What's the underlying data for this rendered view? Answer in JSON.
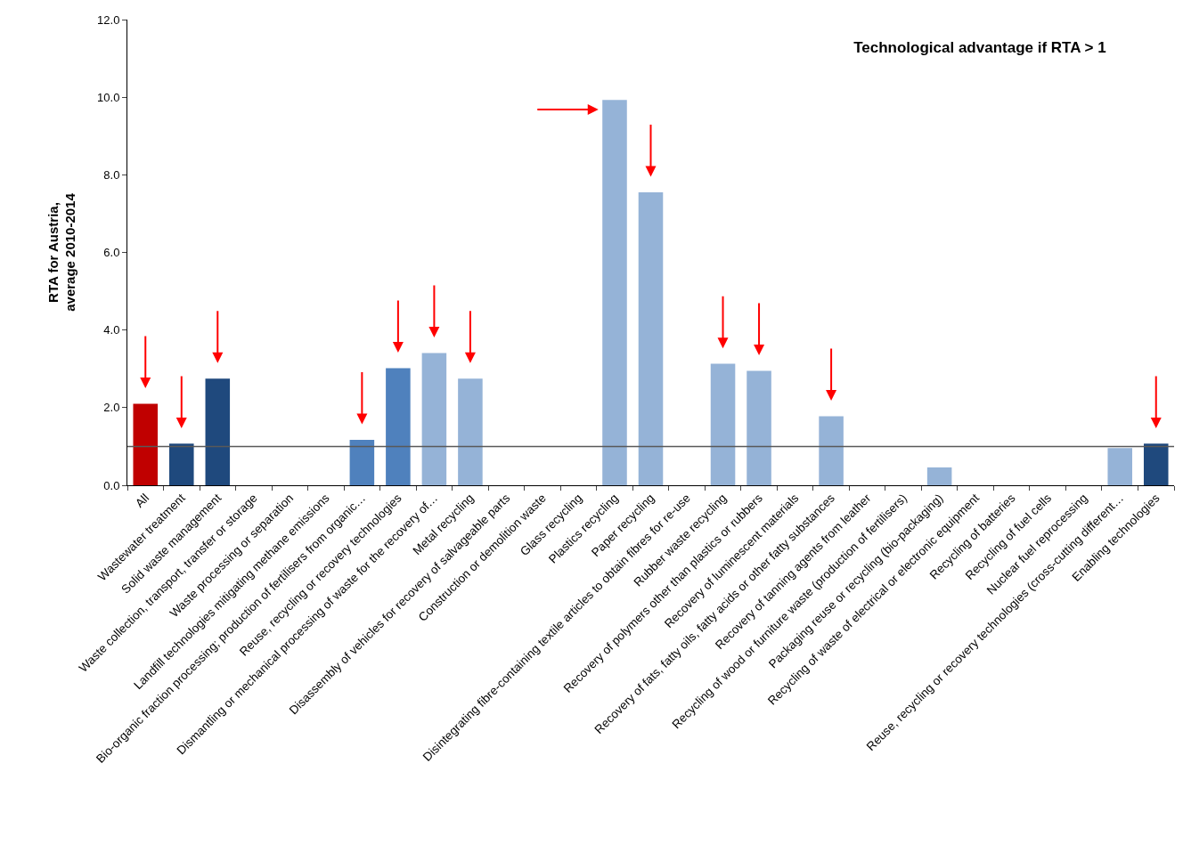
{
  "chart_data": {
    "type": "bar",
    "title": "Technological advantage if RTA > 1",
    "ylabel": "RTA for Austria,\naverage 2010-2014",
    "categories": [
      "All",
      "Wastewater treatment",
      "Solid waste management",
      "Waste collection, transport, transfer or storage",
      "Waste processing or separation",
      "Landfill technologies mitigating methane emissions",
      "Bio-organic fraction processing; production of fertilisers from organic…",
      "Reuse, recycling or recovery technologies",
      "Dismantling or mechanical processing of waste for the recovery of…",
      "Metal recycling",
      "Disassembly of vehicles for recovery of salvageable parts",
      "Construction or demolition waste",
      "Glass recycling",
      "Plastics recycling",
      "Paper recycling",
      "Disintegrating fibre-containing textile articles to obtain fibres for re-use",
      "Rubber waste recycling",
      "Recovery of polymers other than plastics or rubbers",
      "Recovery of luminescent materials",
      "Recovery of fats, fatty oils, fatty acids or other fatty substances",
      "Recovery of tanning agents from leather",
      "Recycling of wood or furniture waste (production of fertilisers)",
      "Packaging reuse or recycling (bio-packaging)",
      "Recycling of waste of electrical or electronic equipment",
      "Recycling of batteries",
      "Recycling of fuel cells",
      "Nuclear fuel reprocessing",
      "Reuse, recycling or recovery technologies (cross-cutting different…",
      "Enabling technologies"
    ],
    "values": [
      2.1,
      1.07,
      2.75,
      null,
      null,
      null,
      1.17,
      3.02,
      3.41,
      2.75,
      null,
      null,
      null,
      9.93,
      7.55,
      null,
      3.13,
      2.95,
      null,
      1.78,
      null,
      null,
      0.46,
      null,
      null,
      null,
      null,
      0.96,
      1.07
    ],
    "colors": [
      "#c00000",
      "#1f497d",
      "#1f497d",
      "#1f497d",
      "#1f497d",
      "#1f497d",
      "#4f81bd",
      "#4f81bd",
      "#95b3d7",
      "#95b3d7",
      "#95b3d7",
      "#95b3d7",
      "#95b3d7",
      "#95b3d7",
      "#95b3d7",
      "#95b3d7",
      "#95b3d7",
      "#95b3d7",
      "#95b3d7",
      "#95b3d7",
      "#95b3d7",
      "#95b3d7",
      "#95b3d7",
      "#95b3d7",
      "#95b3d7",
      "#95b3d7",
      "#95b3d7",
      "#95b3d7",
      "#1f497d"
    ],
    "ylim": [
      0,
      12
    ],
    "yticks": [
      {
        "value": 0,
        "label": "0.0"
      },
      {
        "value": 2,
        "label": "2.0"
      },
      {
        "value": 4,
        "label": "4.0"
      },
      {
        "value": 6,
        "label": "6.0"
      },
      {
        "value": 8,
        "label": "8.0"
      },
      {
        "value": 10,
        "label": "10.0"
      },
      {
        "value": 12,
        "label": "12.0"
      }
    ],
    "ref_lines": [
      {
        "axis": "y",
        "value": 1,
        "color": "#595959"
      }
    ],
    "grid": false
  }
}
